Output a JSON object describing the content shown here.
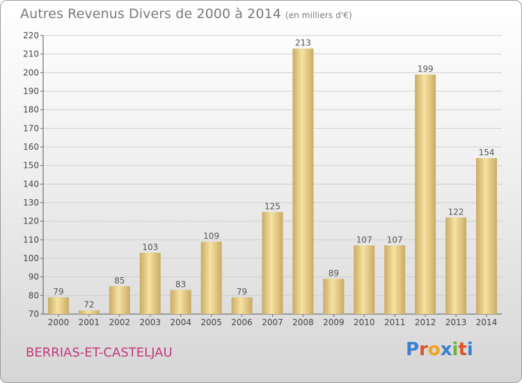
{
  "header": {
    "title": "Autres Revenus Divers de 2000 à 2014",
    "subtitle": "(en milliers d'€)"
  },
  "footer": {
    "location": "BERRIAS-ET-CASTELJAU",
    "logo_text": "Proxiti"
  },
  "colors": {
    "bar_light": "#f6e2a2",
    "bar_dark": "#c9ab63",
    "location_text": "#c03a78",
    "logo_letters": [
      "#3a7fd0",
      "#e0502a",
      "#f2a21b",
      "#3a7fd0",
      "#6bb33a",
      "#e0502a",
      "#3a7fd0"
    ]
  },
  "chart_data": {
    "type": "bar",
    "title": "Autres Revenus Divers de 2000 à 2014",
    "subtitle": "(en milliers d'€)",
    "categories": [
      "2000",
      "2001",
      "2002",
      "2003",
      "2004",
      "2005",
      "2006",
      "2007",
      "2008",
      "2009",
      "2010",
      "2011",
      "2012",
      "2013",
      "2014"
    ],
    "values": [
      79,
      72,
      85,
      103,
      83,
      109,
      79,
      125,
      213,
      89,
      107,
      107,
      199,
      122,
      154
    ],
    "ylim": [
      70,
      220
    ],
    "yticks": [
      70,
      80,
      90,
      100,
      110,
      120,
      130,
      140,
      150,
      160,
      170,
      180,
      190,
      200,
      210,
      220
    ],
    "grid": true,
    "legend": "none"
  }
}
